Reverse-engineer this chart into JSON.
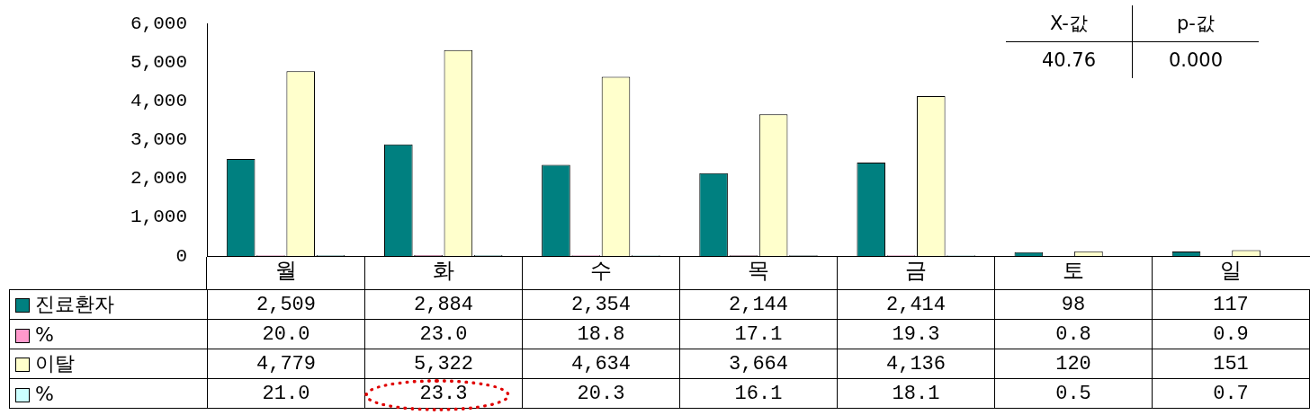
{
  "chart_data": {
    "type": "bar",
    "categories": [
      "월",
      "화",
      "수",
      "목",
      "금",
      "토",
      "일"
    ],
    "series": [
      {
        "name": "진료환자",
        "color": "#008080",
        "values": [
          2509,
          2884,
          2354,
          2144,
          2414,
          98,
          117
        ],
        "value_labels": [
          "2,509",
          "2,884",
          "2,354",
          "2,144",
          "2,414",
          "98",
          "117"
        ]
      },
      {
        "name": "%",
        "color": "#ff99cc",
        "values": [
          20.0,
          23.0,
          18.8,
          17.1,
          19.3,
          0.8,
          0.9
        ],
        "value_labels": [
          "20.0",
          "23.0",
          "18.8",
          "17.1",
          "19.3",
          "0.8",
          "0.9"
        ]
      },
      {
        "name": "이탈",
        "color": "#ffffcc",
        "values": [
          4779,
          5322,
          4634,
          3664,
          4136,
          120,
          151
        ],
        "value_labels": [
          "4,779",
          "5,322",
          "4,634",
          "3,664",
          "4,136",
          "120",
          "151"
        ]
      },
      {
        "name": "%",
        "color": "#ccffff",
        "values": [
          21.0,
          23.3,
          20.3,
          16.1,
          18.1,
          0.5,
          0.7
        ],
        "value_labels": [
          "21.0",
          "23.3",
          "20.3",
          "16.1",
          "18.1",
          "0.5",
          "0.7"
        ]
      }
    ],
    "ylim": [
      0,
      6000
    ],
    "yticks": [
      {
        "value": 0,
        "label": "0"
      },
      {
        "value": 1000,
        "label": "1,000"
      },
      {
        "value": 2000,
        "label": "2,000"
      },
      {
        "value": 3000,
        "label": "3,000"
      },
      {
        "value": 4000,
        "label": "4,000"
      },
      {
        "value": 5000,
        "label": "5,000"
      },
      {
        "value": 6000,
        "label": "6,000"
      }
    ],
    "legend": "bottom left",
    "annotations": [
      "X-값",
      "p-값",
      "40.76",
      "0.000"
    ]
  }
}
